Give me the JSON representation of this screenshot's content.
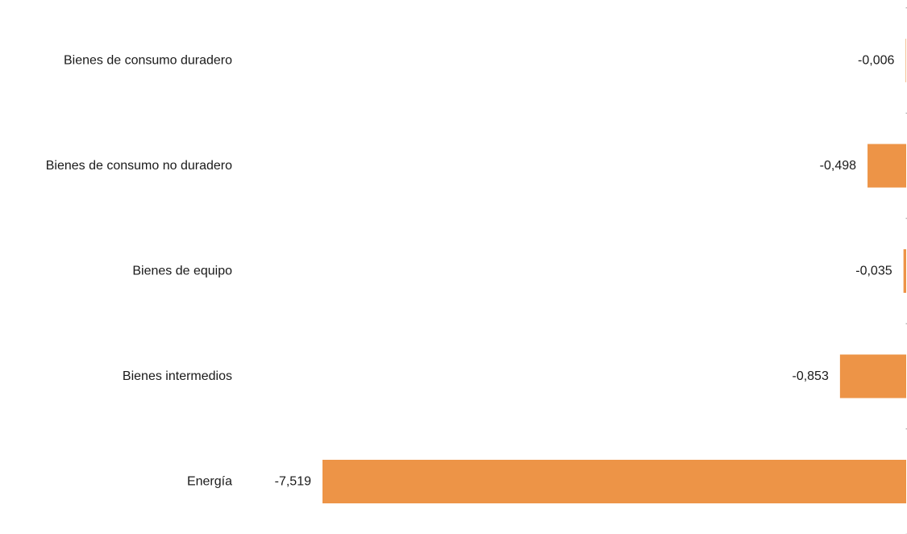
{
  "chart_data": {
    "type": "bar",
    "orientation": "horizontal",
    "title": "",
    "xlabel": "",
    "ylabel": "",
    "categories": [
      "Bienes de consumo duradero",
      "Bienes de consumo no duradero",
      "Bienes de equipo",
      "Bienes intermedios",
      "Energía"
    ],
    "values": [
      -0.006,
      -0.498,
      -0.035,
      -0.853,
      -7.519
    ],
    "value_labels": [
      "-0,006",
      "-0,498",
      "-0,035",
      "-0,853",
      "-7,519"
    ],
    "xlim": [
      -7.519,
      0
    ],
    "bar_color": "#ED9447",
    "grid": false,
    "legend": "none"
  }
}
